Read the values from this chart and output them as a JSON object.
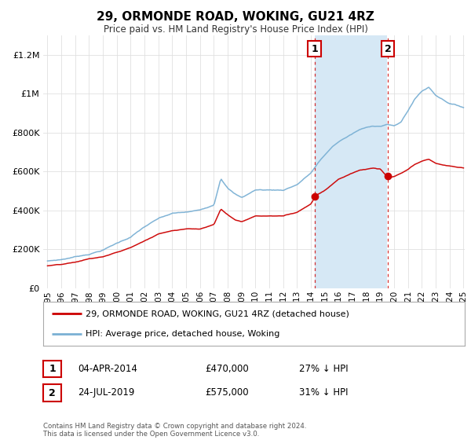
{
  "title": "29, ORMONDE ROAD, WOKING, GU21 4RZ",
  "subtitle": "Price paid vs. HM Land Registry's House Price Index (HPI)",
  "legend_line1": "29, ORMONDE ROAD, WOKING, GU21 4RZ (detached house)",
  "legend_line2": "HPI: Average price, detached house, Woking",
  "transaction1_date": "04-APR-2014",
  "transaction1_price": "£470,000",
  "transaction1_hpi": "27% ↓ HPI",
  "transaction2_date": "24-JUL-2019",
  "transaction2_price": "£575,000",
  "transaction2_hpi": "31% ↓ HPI",
  "footnote": "Contains HM Land Registry data © Crown copyright and database right 2024.\nThis data is licensed under the Open Government Licence v3.0.",
  "red_color": "#cc0000",
  "blue_color": "#7ab0d4",
  "shade_color": "#d6e8f5",
  "annotation_box_color": "#cc0000",
  "background_color": "#ffffff",
  "grid_color": "#e0e0e0",
  "yticks": [
    0,
    200000,
    400000,
    600000,
    800000,
    1000000,
    1200000
  ],
  "ytick_labels": [
    "£0",
    "£200K",
    "£400K",
    "£600K",
    "£800K",
    "£1M",
    "£1.2M"
  ],
  "t1_year": 2014.25,
  "t2_year": 2019.54,
  "t1_price": 470000,
  "t2_price": 575000,
  "hpi_points": [
    [
      1995.0,
      140000
    ],
    [
      1996.0,
      148000
    ],
    [
      1997.0,
      163000
    ],
    [
      1998.0,
      178000
    ],
    [
      1999.0,
      200000
    ],
    [
      2000.0,
      235000
    ],
    [
      2001.0,
      268000
    ],
    [
      2002.0,
      320000
    ],
    [
      2003.0,
      360000
    ],
    [
      2004.0,
      385000
    ],
    [
      2005.0,
      390000
    ],
    [
      2006.0,
      400000
    ],
    [
      2007.0,
      430000
    ],
    [
      2007.5,
      570000
    ],
    [
      2008.0,
      520000
    ],
    [
      2008.5,
      490000
    ],
    [
      2009.0,
      470000
    ],
    [
      2009.5,
      490000
    ],
    [
      2010.0,
      510000
    ],
    [
      2011.0,
      510000
    ],
    [
      2012.0,
      510000
    ],
    [
      2013.0,
      540000
    ],
    [
      2014.0,
      600000
    ],
    [
      2014.5,
      650000
    ],
    [
      2015.0,
      690000
    ],
    [
      2015.5,
      730000
    ],
    [
      2016.0,
      760000
    ],
    [
      2016.5,
      780000
    ],
    [
      2017.0,
      800000
    ],
    [
      2017.5,
      820000
    ],
    [
      2018.0,
      830000
    ],
    [
      2018.5,
      840000
    ],
    [
      2019.0,
      840000
    ],
    [
      2019.5,
      850000
    ],
    [
      2020.0,
      840000
    ],
    [
      2020.5,
      860000
    ],
    [
      2021.0,
      920000
    ],
    [
      2021.5,
      980000
    ],
    [
      2022.0,
      1020000
    ],
    [
      2022.5,
      1040000
    ],
    [
      2023.0,
      1000000
    ],
    [
      2023.5,
      980000
    ],
    [
      2024.0,
      960000
    ],
    [
      2024.5,
      950000
    ],
    [
      2025.0,
      940000
    ]
  ],
  "red_points": [
    [
      1995.0,
      115000
    ],
    [
      1996.0,
      120000
    ],
    [
      1997.0,
      130000
    ],
    [
      1998.0,
      148000
    ],
    [
      1999.0,
      158000
    ],
    [
      2000.0,
      180000
    ],
    [
      2001.0,
      205000
    ],
    [
      2002.0,
      240000
    ],
    [
      2003.0,
      275000
    ],
    [
      2004.0,
      295000
    ],
    [
      2005.0,
      305000
    ],
    [
      2006.0,
      305000
    ],
    [
      2007.0,
      330000
    ],
    [
      2007.5,
      410000
    ],
    [
      2008.0,
      380000
    ],
    [
      2008.5,
      355000
    ],
    [
      2009.0,
      345000
    ],
    [
      2009.5,
      360000
    ],
    [
      2010.0,
      375000
    ],
    [
      2011.0,
      375000
    ],
    [
      2012.0,
      375000
    ],
    [
      2013.0,
      395000
    ],
    [
      2014.0,
      440000
    ],
    [
      2014.25,
      470000
    ],
    [
      2014.5,
      490000
    ],
    [
      2015.0,
      510000
    ],
    [
      2015.5,
      540000
    ],
    [
      2016.0,
      570000
    ],
    [
      2016.5,
      585000
    ],
    [
      2017.0,
      600000
    ],
    [
      2017.5,
      615000
    ],
    [
      2018.0,
      620000
    ],
    [
      2018.5,
      625000
    ],
    [
      2019.0,
      620000
    ],
    [
      2019.54,
      575000
    ],
    [
      2020.0,
      580000
    ],
    [
      2020.5,
      595000
    ],
    [
      2021.0,
      615000
    ],
    [
      2021.5,
      640000
    ],
    [
      2022.0,
      655000
    ],
    [
      2022.5,
      665000
    ],
    [
      2023.0,
      645000
    ],
    [
      2023.5,
      635000
    ],
    [
      2024.0,
      630000
    ],
    [
      2024.5,
      625000
    ],
    [
      2025.0,
      620000
    ]
  ]
}
